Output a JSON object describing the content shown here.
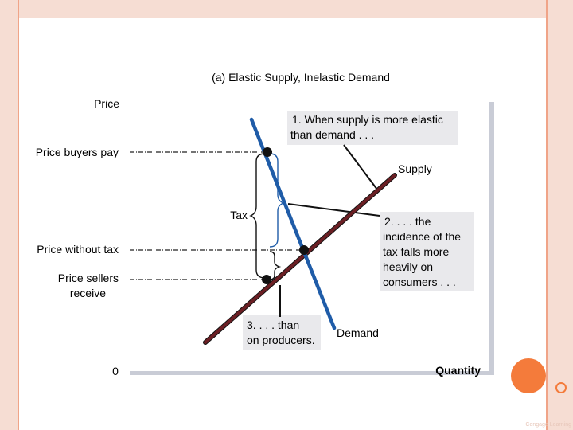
{
  "title": "(a) Elastic Supply, Inelastic Demand",
  "axes": {
    "y_label": "Price",
    "x_label": "Quantity",
    "origin": "0"
  },
  "price_levels": {
    "buyers": "Price buyers pay",
    "without_tax": "Price without tax",
    "sellers_line1": "Price sellers",
    "sellers_line2": "receive"
  },
  "curves": {
    "supply": "Supply",
    "demand": "Demand"
  },
  "tax_label": "Tax",
  "callouts": {
    "c1": [
      "1. When supply is more elastic",
      "than demand . . ."
    ],
    "c2": [
      "2. . . . the",
      "incidence of the",
      "tax falls more",
      "heavily on",
      "consumers . . ."
    ],
    "c3": [
      "3. . . . than",
      "on producers."
    ]
  },
  "credit": "Cengage Learning",
  "colors": {
    "supply": "#6b1f24",
    "demand": "#1f5ca8",
    "callout_bg": "#e9e9ec",
    "frame_accent": "#f47b3b",
    "frame_bg": "#f6ddd3"
  }
}
